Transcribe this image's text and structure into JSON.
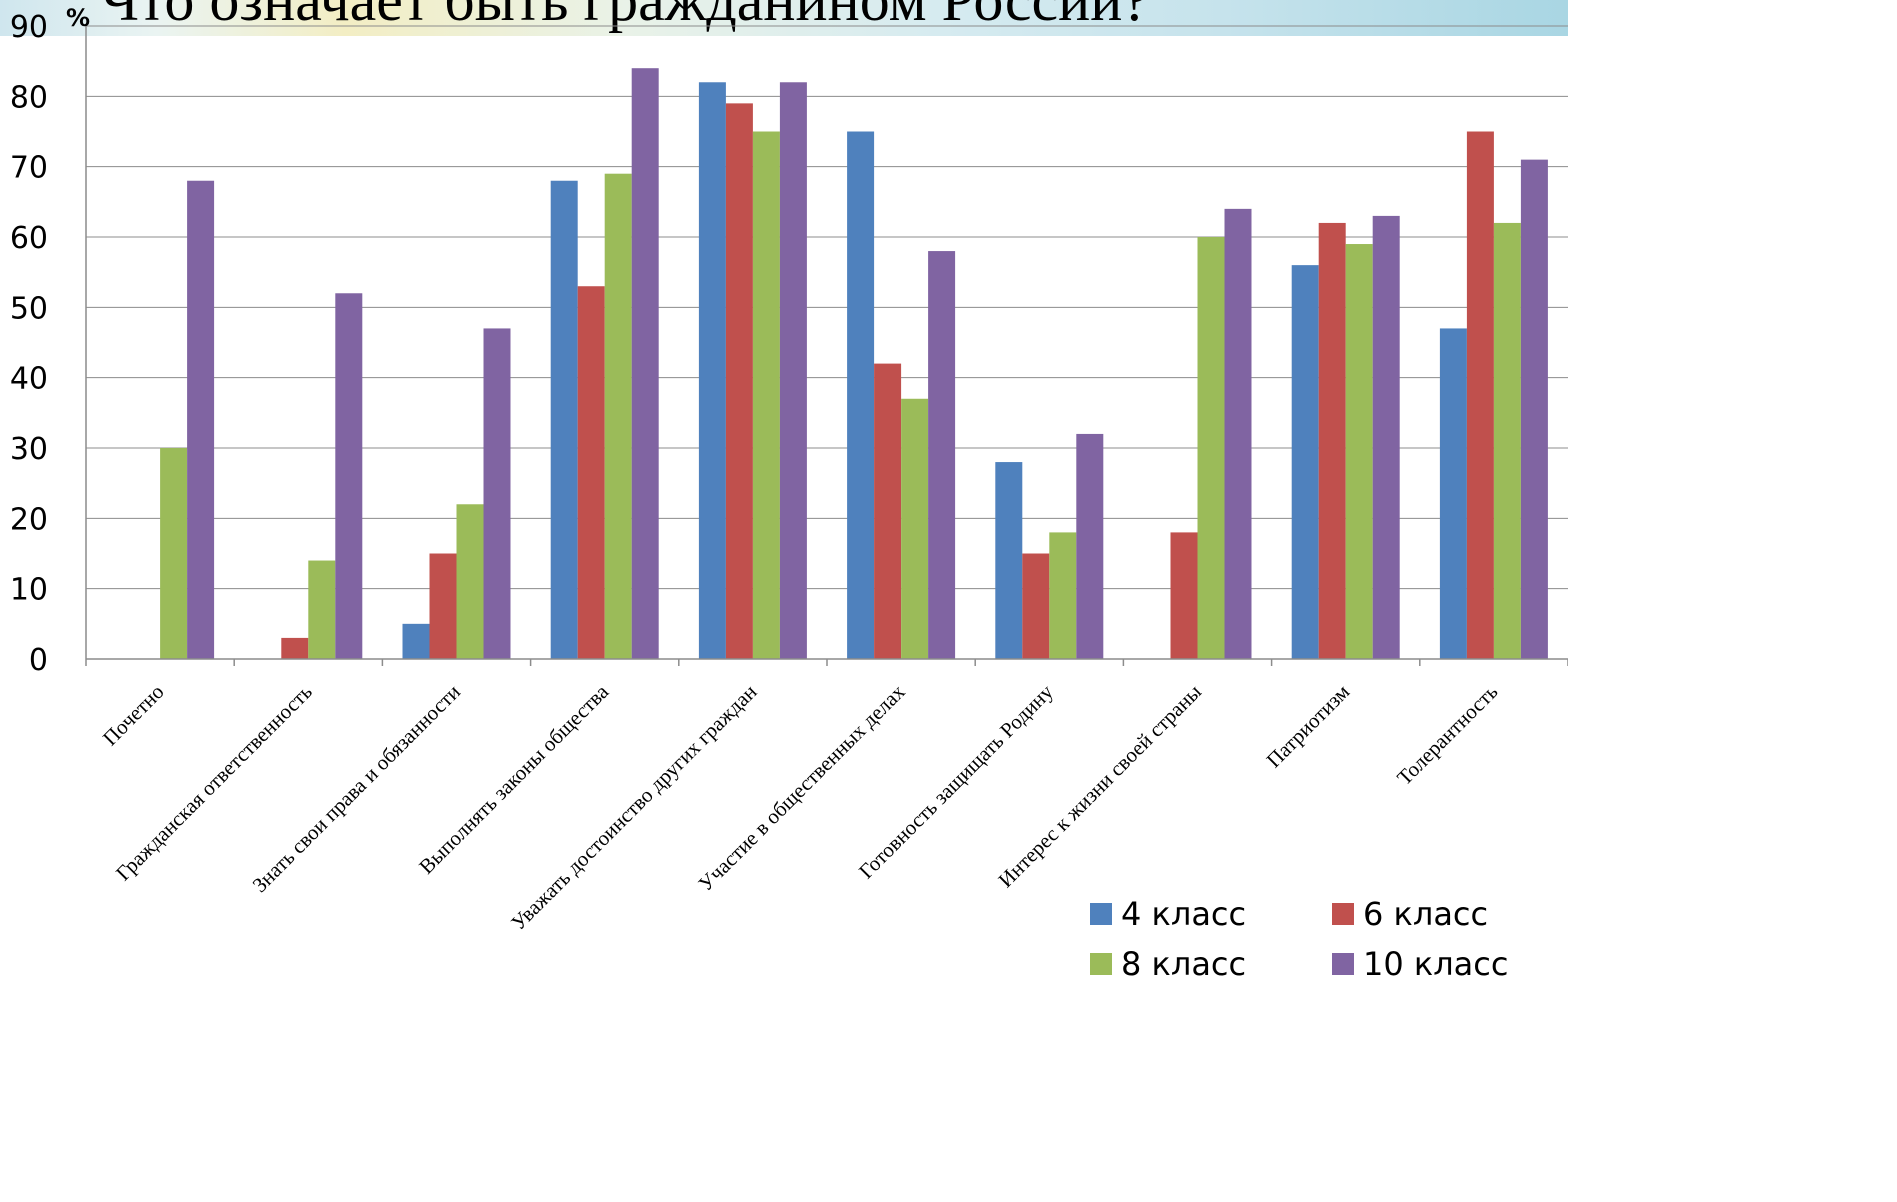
{
  "banner": {
    "title": "Что означает быть гражданином России?"
  },
  "chart_data": {
    "type": "bar",
    "title": "Что означает быть гражданином России?",
    "ylabel": "%",
    "xlabel": "",
    "ylim": [
      0,
      90
    ],
    "yticks": [
      0,
      10,
      20,
      30,
      40,
      50,
      60,
      70,
      80,
      90
    ],
    "grid": true,
    "legend_position": "bottom-right",
    "categories": [
      "Почетно",
      "Гражданская ответственность",
      "Знать свои права и обязанности",
      "Выполнять законы общества",
      "Уважать достоинство других граждан",
      "Участие в общественных делах",
      "Готовность защищать Родину",
      "Интерес к жизни своей страны",
      "Патриотизм",
      "Толерантность"
    ],
    "series": [
      {
        "name": "4 класс",
        "color": "#4F81BD",
        "values": [
          0,
          0,
          5,
          68,
          82,
          75,
          28,
          0,
          56,
          47
        ]
      },
      {
        "name": "6 класс",
        "color": "#C0504D",
        "values": [
          0,
          3,
          15,
          53,
          79,
          42,
          15,
          18,
          62,
          75
        ]
      },
      {
        "name": "8 класс",
        "color": "#9BBB59",
        "values": [
          30,
          14,
          22,
          69,
          75,
          37,
          18,
          60,
          59,
          62
        ]
      },
      {
        "name": "10 класс",
        "color": "#8064A2",
        "values": [
          68,
          52,
          47,
          84,
          82,
          58,
          32,
          64,
          63,
          71
        ]
      }
    ]
  }
}
